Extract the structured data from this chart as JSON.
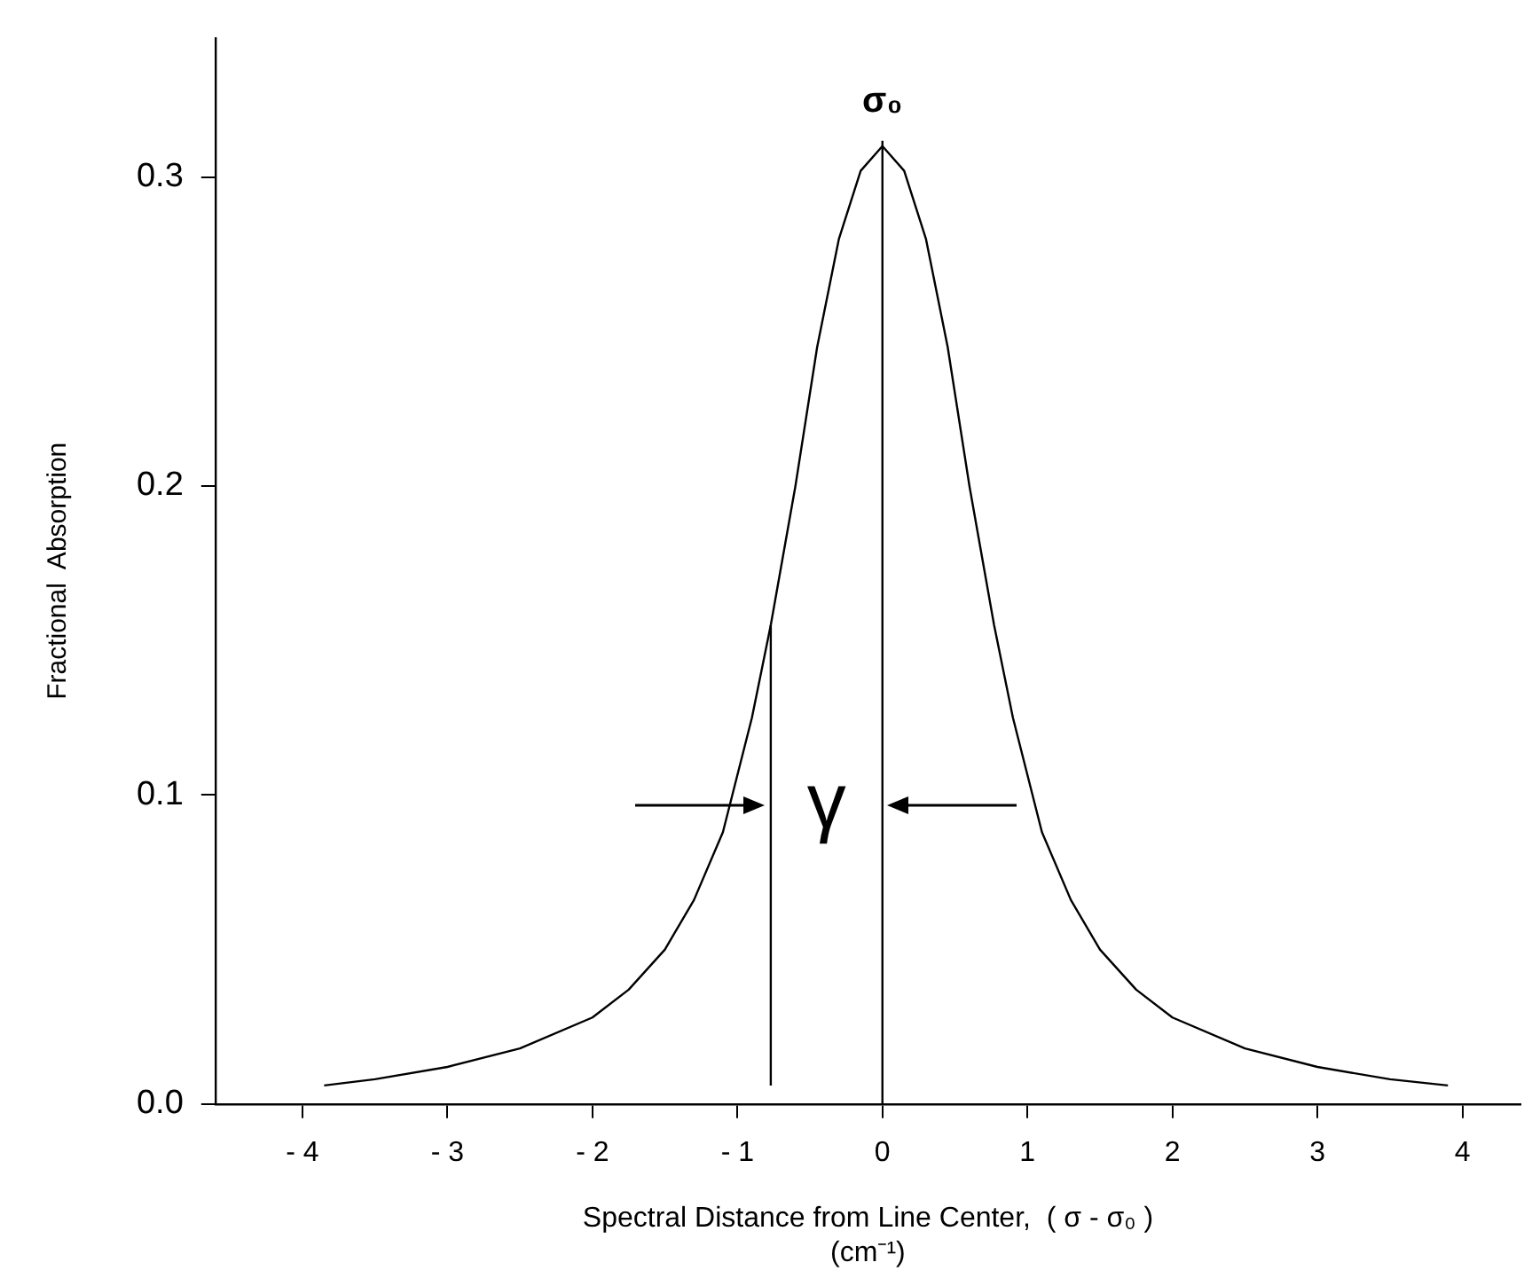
{
  "chart_data": {
    "type": "line",
    "xlabel": "Spectral Distance from Line Center,  ( σ - σ₀ )\n(cm⁻¹)",
    "ylabel": "Fractional  Absorption",
    "series": [
      {
        "color": "#000000",
        "x": [
          -3.85,
          -3.5,
          -3,
          -2.5,
          -2,
          -1.75,
          -1.5,
          -1.3,
          -1.1,
          -0.9,
          -0.77,
          -0.6,
          -0.45,
          -0.3,
          -0.15,
          0,
          0.15,
          0.3,
          0.45,
          0.6,
          0.77,
          0.9,
          1.1,
          1.3,
          1.5,
          1.75,
          2,
          2.5,
          3,
          3.5,
          3.9
        ],
        "values": [
          0.006,
          0.008,
          0.012,
          0.018,
          0.028,
          0.037,
          0.05,
          0.066,
          0.088,
          0.125,
          0.155,
          0.2,
          0.245,
          0.28,
          0.302,
          0.31,
          0.302,
          0.28,
          0.245,
          0.2,
          0.155,
          0.125,
          0.088,
          0.066,
          0.05,
          0.037,
          0.028,
          0.018,
          0.012,
          0.008,
          0.006
        ]
      },
      {
        "color": "#000000",
        "x": [
          -0.77,
          -0.77
        ],
        "values": [
          0.006,
          0.155
        ]
      }
    ],
    "ref_lines": [
      {
        "axis": "x",
        "value": 0,
        "label": "σ₀"
      }
    ],
    "annotations": [
      "γ"
    ],
    "xlim": [
      -4.6,
      4.4
    ],
    "ylim": [
      0,
      0.345
    ],
    "xticks": [
      -4,
      -3,
      -2,
      -1,
      0,
      1,
      2,
      3,
      4
    ],
    "yticks": [
      {
        "value": 0,
        "label": "0.0"
      },
      0.1,
      0.2,
      0.3
    ],
    "grid": false,
    "legend": false,
    "marker": "none",
    "line_style": "solid"
  }
}
